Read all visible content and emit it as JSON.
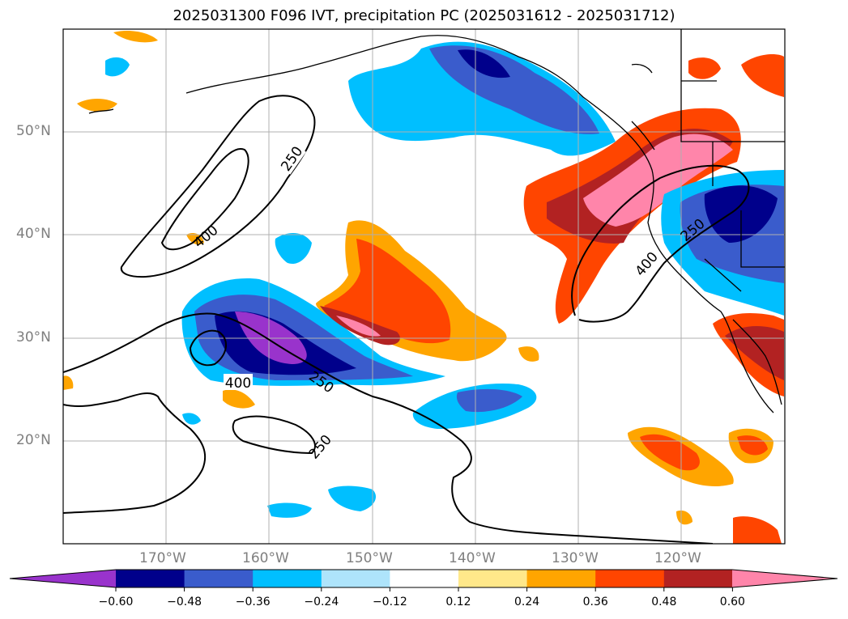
{
  "title": "2025031300 F096 IVT, precipitation PC (2025031612 - 2025031712)",
  "lat_labels": [
    "50°N",
    "40°N",
    "30°N",
    "20°N"
  ],
  "lon_labels": [
    "170°W",
    "160°W",
    "150°W",
    "140°W",
    "130°W",
    "120°W"
  ],
  "contour_labels": [
    "250",
    "400",
    "400",
    "250",
    "400",
    "250",
    "250"
  ],
  "colorbar": {
    "ticks": [
      "−0.60",
      "−0.48",
      "−0.36",
      "−0.24",
      "−0.12",
      "0.12",
      "0.24",
      "0.36",
      "0.48",
      "0.60"
    ],
    "colors": [
      "#9933cc",
      "#00008b",
      "#3a5ccc",
      "#00bfff",
      "#aee4fb",
      "#ffffff",
      "#ffe88a",
      "#ffa500",
      "#ff4500",
      "#b22222",
      "#ff85aa"
    ]
  }
}
